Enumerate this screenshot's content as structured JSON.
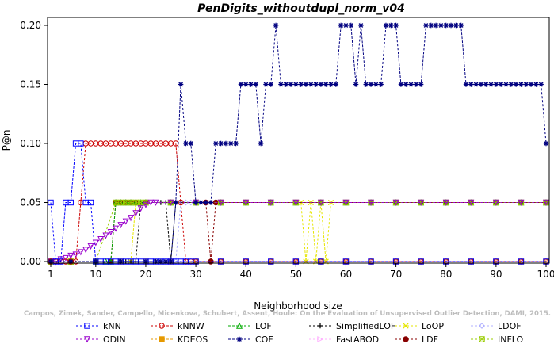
{
  "chart_data": {
    "type": "line",
    "title": "PenDigits_withoutdupl_norm_v04",
    "xlabel": "Neighborhood size",
    "ylabel": "P@n",
    "xlim": [
      1,
      100
    ],
    "ylim": [
      0,
      0.2
    ],
    "xticks": [
      1,
      10,
      20,
      30,
      40,
      50,
      60,
      70,
      80,
      90,
      100
    ],
    "yticks": [
      0.0,
      0.05,
      0.1,
      0.15,
      0.2
    ],
    "xtick_labels": [
      "1",
      "10",
      "20",
      "30",
      "40",
      "50",
      "60",
      "70",
      "80",
      "90",
      "100"
    ],
    "ytick_labels": [
      "0.00",
      "0.05",
      "0.10",
      "0.15",
      "0.20"
    ],
    "grid": false,
    "legend_position": "bottom",
    "credit": "Campos, Zimek, Sander, Campello, Micenkova, Schubert, Assent, Houle: On the Evaluation of Unsupervised Outlier Detection, DAMI, 2015.",
    "series": [
      {
        "name": "kNN",
        "color": "#0000ff",
        "marker": "square",
        "x": [
          1,
          2,
          3,
          4,
          5,
          6,
          7,
          8,
          9,
          10,
          11,
          12,
          13,
          14,
          15,
          16,
          17,
          18,
          19,
          20,
          21,
          22,
          23,
          24,
          25,
          26,
          27,
          28,
          29,
          30,
          35,
          40,
          45,
          50,
          55,
          60,
          65,
          70,
          75,
          80,
          85,
          90,
          95,
          100
        ],
        "y": [
          0.05,
          0,
          0,
          0.05,
          0.05,
          0.1,
          0.1,
          0.05,
          0.05,
          0,
          0,
          0,
          0,
          0,
          0,
          0,
          0,
          0,
          0,
          0,
          0,
          0,
          0,
          0,
          0,
          0,
          0,
          0,
          0,
          0,
          0,
          0,
          0,
          0,
          0,
          0,
          0,
          0,
          0,
          0,
          0,
          0,
          0,
          0
        ]
      },
      {
        "name": "kNNW",
        "color": "#cc0000",
        "marker": "circle",
        "x": [
          1,
          2,
          3,
          4,
          5,
          6,
          7,
          8,
          9,
          10,
          11,
          12,
          13,
          14,
          15,
          16,
          17,
          18,
          19,
          20,
          21,
          22,
          23,
          24,
          25,
          26,
          27,
          28,
          29,
          30,
          35,
          40,
          45,
          50,
          55,
          60,
          65,
          70,
          75,
          80,
          85,
          90,
          95,
          100
        ],
        "y": [
          0,
          0,
          0,
          0,
          0,
          0,
          0.05,
          0.1,
          0.1,
          0.1,
          0.1,
          0.1,
          0.1,
          0.1,
          0.1,
          0.1,
          0.1,
          0.1,
          0.1,
          0.1,
          0.1,
          0.1,
          0.1,
          0.1,
          0.1,
          0.1,
          0.05,
          0,
          0,
          0,
          0,
          0,
          0,
          0,
          0,
          0,
          0,
          0,
          0,
          0,
          0,
          0,
          0,
          0
        ]
      },
      {
        "name": "LOF",
        "color": "#00aa00",
        "marker": "triangle-up",
        "x": [
          1,
          5,
          10,
          12,
          13,
          14,
          15,
          16,
          17,
          18,
          19,
          20,
          25,
          30,
          35,
          40,
          45,
          50,
          55,
          60,
          65,
          70,
          75,
          80,
          85,
          90,
          95,
          100
        ],
        "y": [
          0,
          0,
          0,
          0,
          0,
          0.05,
          0.05,
          0.05,
          0.05,
          0.05,
          0.05,
          0.05,
          0.05,
          0.05,
          0.05,
          0.05,
          0.05,
          0.05,
          0.05,
          0.05,
          0.05,
          0.05,
          0.05,
          0.05,
          0.05,
          0.05,
          0.05,
          0.05
        ]
      },
      {
        "name": "SimplifiedLOF",
        "color": "#000000",
        "marker": "plus",
        "x": [
          1,
          5,
          10,
          15,
          16,
          17,
          18,
          19,
          20,
          23,
          24,
          25,
          26,
          27,
          30,
          35,
          40,
          45,
          50,
          55,
          60,
          65,
          70,
          75,
          80,
          85,
          90,
          95,
          100
        ],
        "y": [
          0,
          0,
          0,
          0,
          0,
          0,
          0,
          0.05,
          0.05,
          0.05,
          0.05,
          0,
          0.05,
          0.05,
          0.05,
          0.05,
          0.05,
          0.05,
          0.05,
          0.05,
          0.05,
          0.05,
          0.05,
          0.05,
          0.05,
          0.05,
          0.05,
          0.05,
          0.05
        ]
      },
      {
        "name": "LoOP",
        "color": "#e6e600",
        "marker": "x",
        "x": [
          1,
          5,
          10,
          15,
          17,
          18,
          19,
          20,
          25,
          30,
          35,
          40,
          45,
          50,
          51,
          52,
          53,
          54,
          55,
          56,
          57,
          60,
          65,
          70,
          75,
          80,
          85,
          90,
          95,
          100
        ],
        "y": [
          0,
          0,
          0,
          0,
          0,
          0.05,
          0.05,
          0.05,
          0.05,
          0.05,
          0.05,
          0.05,
          0.05,
          0.05,
          0.05,
          0,
          0.05,
          0,
          0.05,
          0,
          0.05,
          0.05,
          0.05,
          0.05,
          0.05,
          0.05,
          0.05,
          0.05,
          0.05,
          0.05
        ]
      },
      {
        "name": "LDOF",
        "color": "#b0b0ff",
        "marker": "diamond",
        "x": [
          1,
          5,
          10,
          15,
          20,
          25,
          26,
          27,
          28,
          29,
          30,
          35,
          40,
          45,
          50,
          55,
          60,
          65,
          70,
          75,
          80,
          85,
          90,
          95,
          100
        ],
        "y": [
          0,
          0,
          0,
          0,
          0,
          0,
          0,
          0.05,
          0.05,
          0.05,
          0.05,
          0.05,
          0.05,
          0.05,
          0.05,
          0.05,
          0.05,
          0.05,
          0.05,
          0.05,
          0.05,
          0.05,
          0.05,
          0.05,
          0.05
        ]
      },
      {
        "name": "ODIN",
        "color": "#9900cc",
        "marker": "triangle-down",
        "x": [
          1,
          2,
          3,
          4,
          5,
          6,
          7,
          8,
          9,
          10,
          11,
          12,
          13,
          14,
          15,
          16,
          17,
          18,
          19,
          20,
          21,
          22,
          25,
          30,
          35,
          40,
          45,
          50,
          55,
          60,
          65,
          70,
          75,
          80,
          85,
          90,
          95,
          100
        ],
        "y": [
          0,
          0,
          0.002,
          0.003,
          0.005,
          0.006,
          0.008,
          0.01,
          0.013,
          0.016,
          0.019,
          0.022,
          0.025,
          0.028,
          0.031,
          0.034,
          0.037,
          0.041,
          0.045,
          0.048,
          0.05,
          0.05,
          0.05,
          0.05,
          0.05,
          0.05,
          0.05,
          0.05,
          0.05,
          0.05,
          0.05,
          0.05,
          0.05,
          0.05,
          0.05,
          0.05,
          0.05,
          0.05
        ]
      },
      {
        "name": "KDEOS",
        "color": "#e69900",
        "marker": "square-filled",
        "x": [
          1,
          5,
          10,
          15,
          20,
          25,
          30,
          35,
          40,
          45,
          50,
          55,
          60,
          65,
          70,
          75,
          80,
          85,
          90,
          95,
          100
        ],
        "y": [
          0,
          0,
          0,
          0,
          0,
          0,
          0,
          0,
          0,
          0,
          0,
          0,
          0,
          0,
          0,
          0,
          0,
          0,
          0,
          0,
          0
        ]
      },
      {
        "name": "COF",
        "color": "#000080",
        "marker": "asterisk",
        "x": [
          1,
          5,
          10,
          15,
          20,
          22,
          23,
          24,
          25,
          26,
          27,
          28,
          29,
          30,
          31,
          32,
          33,
          34,
          35,
          36,
          37,
          38,
          39,
          40,
          41,
          42,
          43,
          44,
          45,
          46,
          47,
          48,
          49,
          50,
          51,
          52,
          53,
          54,
          55,
          56,
          57,
          58,
          59,
          60,
          61,
          62,
          63,
          64,
          65,
          66,
          67,
          68,
          69,
          70,
          71,
          72,
          73,
          74,
          75,
          76,
          77,
          78,
          79,
          80,
          81,
          82,
          83,
          84,
          85,
          86,
          87,
          88,
          89,
          90,
          91,
          92,
          93,
          94,
          95,
          96,
          97,
          98,
          99,
          100
        ],
        "y": [
          0,
          0,
          0,
          0,
          0,
          0,
          0,
          0,
          0,
          0.05,
          0.15,
          0.1,
          0.1,
          0.05,
          0.05,
          0.05,
          0.05,
          0.1,
          0.1,
          0.1,
          0.1,
          0.1,
          0.15,
          0.15,
          0.15,
          0.15,
          0.1,
          0.15,
          0.15,
          0.2,
          0.15,
          0.15,
          0.15,
          0.15,
          0.15,
          0.15,
          0.15,
          0.15,
          0.15,
          0.15,
          0.15,
          0.15,
          0.2,
          0.2,
          0.2,
          0.15,
          0.2,
          0.15,
          0.15,
          0.15,
          0.15,
          0.2,
          0.2,
          0.2,
          0.15,
          0.15,
          0.15,
          0.15,
          0.15,
          0.2,
          0.2,
          0.2,
          0.2,
          0.2,
          0.2,
          0.2,
          0.2,
          0.15,
          0.15,
          0.15,
          0.15,
          0.15,
          0.15,
          0.15,
          0.15,
          0.15,
          0.15,
          0.15,
          0.15,
          0.15,
          0.15,
          0.15,
          0.15,
          0.1
        ]
      },
      {
        "name": "FastABOD",
        "color": "#ffb3ff",
        "marker": "triangle-right",
        "x": [
          1,
          5,
          10,
          15,
          20,
          25,
          30,
          35,
          40,
          45,
          50,
          55,
          60,
          65,
          70,
          75,
          80,
          85,
          90,
          95,
          100
        ],
        "y": [
          0,
          0,
          0,
          0,
          0,
          0,
          0,
          0,
          0,
          0,
          0,
          0,
          0,
          0,
          0,
          0,
          0,
          0,
          0,
          0,
          0
        ]
      },
      {
        "name": "LDF",
        "color": "#880000",
        "marker": "circle-filled",
        "x": [
          1,
          5,
          10,
          13,
          14,
          15,
          16,
          17,
          18,
          20,
          25,
          30,
          32,
          33,
          34,
          35,
          40,
          45,
          50,
          55,
          60,
          65,
          70,
          75,
          80,
          85,
          90,
          95,
          100
        ],
        "y": [
          0,
          0,
          0,
          0,
          0.05,
          0.05,
          0.05,
          0.05,
          0.05,
          0.05,
          0.05,
          0.05,
          0.05,
          0,
          0.05,
          0.05,
          0.05,
          0.05,
          0.05,
          0.05,
          0.05,
          0.05,
          0.05,
          0.05,
          0.05,
          0.05,
          0.05,
          0.05,
          0.05
        ]
      },
      {
        "name": "INFLO",
        "color": "#99cc00",
        "marker": "square-x",
        "x": [
          1,
          5,
          10,
          14,
          15,
          16,
          17,
          18,
          19,
          20,
          25,
          30,
          35,
          40,
          45,
          50,
          55,
          60,
          65,
          70,
          75,
          80,
          85,
          90,
          95,
          100
        ],
        "y": [
          0,
          0,
          0,
          0.05,
          0.05,
          0.05,
          0.05,
          0.05,
          0.05,
          0.05,
          0.05,
          0.05,
          0.05,
          0.05,
          0.05,
          0.05,
          0.05,
          0.05,
          0.05,
          0.05,
          0.05,
          0.05,
          0.05,
          0.05,
          0.05,
          0.05
        ]
      }
    ]
  }
}
